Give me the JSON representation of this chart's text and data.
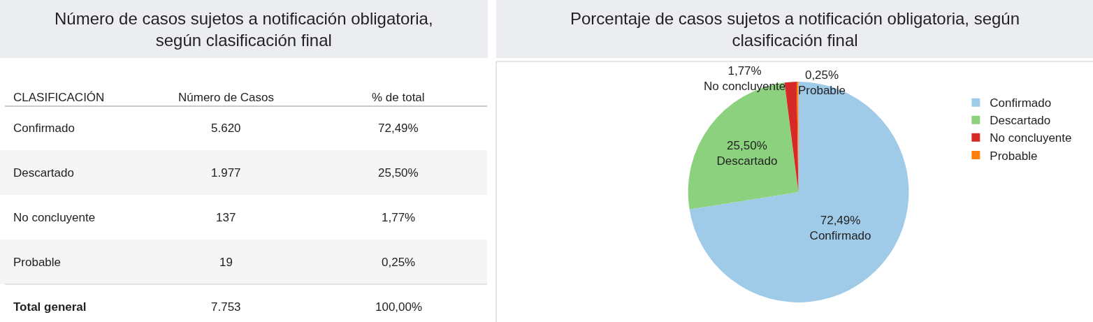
{
  "chart_data": [
    {
      "type": "other",
      "title": "Número de casos sujetos a notificación obligatoria, según clasificación final",
      "annotations": [
        "CLASIFICACIÓN",
        "Número de Casos",
        "% de total",
        "Confirmado",
        "5.620",
        "72,49%",
        "Descartado",
        "1.977",
        "25,50%",
        "No concluyente",
        "137",
        "1,77%",
        "Probable",
        "19",
        "0,25%",
        "Total general",
        "7.753",
        "100,00%"
      ]
    },
    {
      "type": "pie",
      "title": "Porcentaje de casos sujetos a notificación obligatoria, según clasificación final",
      "categories": [
        "Confirmado",
        "Descartado",
        "No concluyente",
        "Probable"
      ],
      "values": [
        72.49,
        25.5,
        1.77,
        0.25
      ],
      "value_labels": [
        "72,49%",
        "25,50%",
        "1,77%",
        "0,25%"
      ],
      "colors": [
        "#9fcae8",
        "#8cd17d",
        "#d62a28",
        "#ff7f0e"
      ],
      "legend": "top right"
    }
  ]
}
